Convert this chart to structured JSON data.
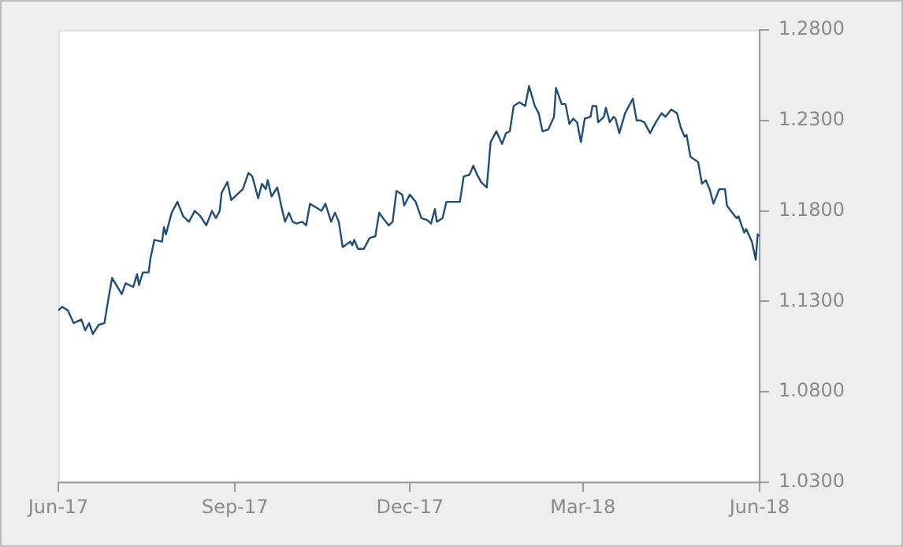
{
  "chart_data": {
    "type": "line",
    "x": [
      "2017-06-01",
      "2017-06-03",
      "2017-06-06",
      "2017-06-09",
      "2017-06-13",
      "2017-06-15",
      "2017-06-17",
      "2017-06-19",
      "2017-06-22",
      "2017-06-25",
      "2017-06-27",
      "2017-06-29",
      "2017-07-04",
      "2017-07-06",
      "2017-07-10",
      "2017-07-12",
      "2017-07-13",
      "2017-07-15",
      "2017-07-18",
      "2017-07-19",
      "2017-07-21",
      "2017-07-25",
      "2017-07-26",
      "2017-07-27",
      "2017-07-30",
      "2017-08-02",
      "2017-08-05",
      "2017-08-08",
      "2017-08-11",
      "2017-08-14",
      "2017-08-17",
      "2017-08-20",
      "2017-08-22",
      "2017-08-24",
      "2017-08-25",
      "2017-08-28",
      "2017-08-30",
      "2017-09-02",
      "2017-09-05",
      "2017-09-08",
      "2017-09-10",
      "2017-09-11",
      "2017-09-13",
      "2017-09-15",
      "2017-09-17",
      "2017-09-18",
      "2017-09-20",
      "2017-09-23",
      "2017-09-25",
      "2017-09-27",
      "2017-09-29",
      "2017-10-01",
      "2017-10-03",
      "2017-10-06",
      "2017-10-08",
      "2017-10-10",
      "2017-10-13",
      "2017-10-16",
      "2017-10-18",
      "2017-10-21",
      "2017-10-23",
      "2017-10-25",
      "2017-10-27",
      "2017-10-31",
      "2017-11-01",
      "2017-11-02",
      "2017-11-04",
      "2017-11-07",
      "2017-11-10",
      "2017-11-13",
      "2017-11-15",
      "2017-11-17",
      "2017-11-20",
      "2017-11-22",
      "2017-11-24",
      "2017-11-27",
      "2017-11-28",
      "2017-12-01",
      "2017-12-04",
      "2017-12-07",
      "2017-12-10",
      "2017-12-12",
      "2017-12-14",
      "2017-12-15",
      "2017-12-18",
      "2017-12-20",
      "2017-12-23",
      "2017-12-27",
      "2017-12-29",
      "2018-01-01",
      "2018-01-03",
      "2018-01-05",
      "2018-01-07",
      "2018-01-10",
      "2018-01-12",
      "2018-01-15",
      "2018-01-18",
      "2018-01-20",
      "2018-01-22",
      "2018-01-24",
      "2018-01-27",
      "2018-01-30",
      "2018-02-01",
      "2018-02-04",
      "2018-02-06",
      "2018-02-08",
      "2018-02-11",
      "2018-02-14",
      "2018-02-15",
      "2018-02-18",
      "2018-02-20",
      "2018-02-22",
      "2018-02-24",
      "2018-02-26",
      "2018-02-28",
      "2018-03-02",
      "2018-03-05",
      "2018-03-06",
      "2018-03-08",
      "2018-03-09",
      "2018-03-12",
      "2018-03-13",
      "2018-03-15",
      "2018-03-17",
      "2018-03-18",
      "2018-03-20",
      "2018-03-23",
      "2018-03-27",
      "2018-03-29",
      "2018-03-31",
      "2018-04-02",
      "2018-04-05",
      "2018-04-08",
      "2018-04-11",
      "2018-04-13",
      "2018-04-16",
      "2018-04-19",
      "2018-04-21",
      "2018-04-23",
      "2018-04-24",
      "2018-04-26",
      "2018-04-30",
      "2018-05-02",
      "2018-05-04",
      "2018-05-06",
      "2018-05-08",
      "2018-05-11",
      "2018-05-14",
      "2018-05-15",
      "2018-05-17",
      "2018-05-20",
      "2018-05-21",
      "2018-05-24",
      "2018-05-25",
      "2018-05-28",
      "2018-05-30",
      "2018-05-31",
      "2018-06-01"
    ],
    "series": [
      {
        "color": "#1f4e79",
        "values": [
          1.125,
          1.127,
          1.125,
          1.118,
          1.12,
          1.114,
          1.118,
          1.112,
          1.117,
          1.118,
          1.131,
          1.143,
          1.134,
          1.14,
          1.138,
          1.145,
          1.139,
          1.146,
          1.146,
          1.154,
          1.164,
          1.163,
          1.171,
          1.167,
          1.179,
          1.185,
          1.177,
          1.174,
          1.18,
          1.177,
          1.172,
          1.18,
          1.176,
          1.18,
          1.19,
          1.196,
          1.186,
          1.189,
          1.192,
          1.201,
          1.199,
          1.195,
          1.187,
          1.195,
          1.192,
          1.197,
          1.188,
          1.193,
          1.183,
          1.174,
          1.179,
          1.174,
          1.173,
          1.174,
          1.172,
          1.184,
          1.182,
          1.18,
          1.184,
          1.174,
          1.179,
          1.174,
          1.16,
          1.163,
          1.161,
          1.164,
          1.159,
          1.159,
          1.165,
          1.166,
          1.179,
          1.176,
          1.172,
          1.174,
          1.191,
          1.189,
          1.183,
          1.189,
          1.185,
          1.176,
          1.175,
          1.173,
          1.181,
          1.174,
          1.176,
          1.185,
          1.185,
          1.185,
          1.199,
          1.2,
          1.205,
          1.2,
          1.196,
          1.193,
          1.218,
          1.224,
          1.217,
          1.223,
          1.224,
          1.238,
          1.24,
          1.238,
          1.249,
          1.238,
          1.234,
          1.224,
          1.225,
          1.232,
          1.248,
          1.239,
          1.239,
          1.228,
          1.231,
          1.229,
          1.218,
          1.231,
          1.232,
          1.238,
          1.238,
          1.229,
          1.232,
          1.237,
          1.229,
          1.232,
          1.231,
          1.223,
          1.234,
          1.242,
          1.23,
          1.23,
          1.229,
          1.223,
          1.229,
          1.234,
          1.232,
          1.236,
          1.234,
          1.226,
          1.221,
          1.222,
          1.21,
          1.207,
          1.195,
          1.197,
          1.192,
          1.184,
          1.192,
          1.192,
          1.183,
          1.18,
          1.176,
          1.177,
          1.168,
          1.17,
          1.163,
          1.153,
          1.167,
          1.166
        ]
      }
    ],
    "xlim": [
      "2017-06-01",
      "2018-06-01"
    ],
    "xticks": [
      {
        "value": "2017-06-01",
        "label": "Jun-17"
      },
      {
        "value": "2017-09-01",
        "label": "Sep-17"
      },
      {
        "value": "2017-12-01",
        "label": "Dec-17"
      },
      {
        "value": "2018-03-01",
        "label": "Mar-18"
      },
      {
        "value": "2018-06-01",
        "label": "Jun-18"
      }
    ],
    "ylim": [
      1.03,
      1.28
    ],
    "yticks": [
      {
        "value": 1.03,
        "label": "1.0300"
      },
      {
        "value": 1.08,
        "label": "1.0800"
      },
      {
        "value": 1.13,
        "label": "1.1300"
      },
      {
        "value": 1.18,
        "label": "1.1800"
      },
      {
        "value": 1.23,
        "label": "1.2300"
      },
      {
        "value": 1.28,
        "label": "1.2800"
      }
    ],
    "grid": false,
    "legend": false,
    "marker": "none",
    "line_style": "solid"
  }
}
